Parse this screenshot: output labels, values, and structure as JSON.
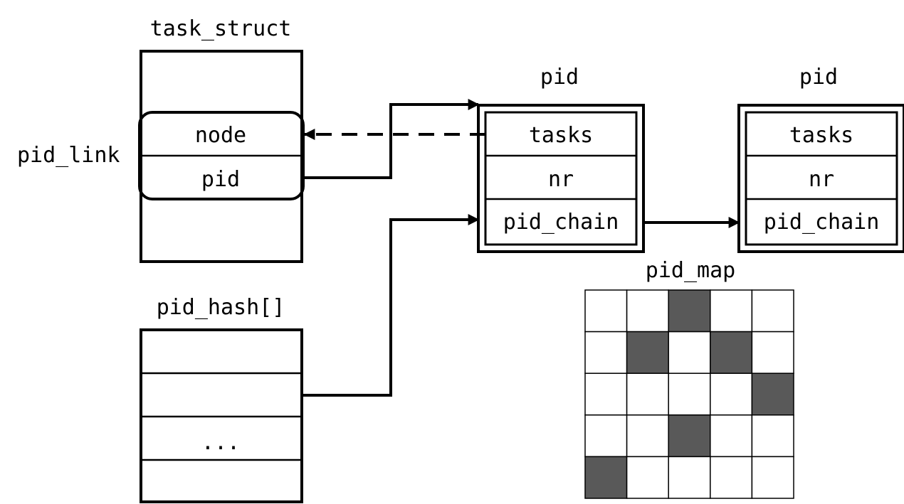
{
  "task_struct": {
    "title": "task_struct",
    "pid_link_label": "pid_link",
    "fields": [
      "node",
      "pid"
    ]
  },
  "pid_hash": {
    "title": "pid_hash[]",
    "slots": [
      "",
      "",
      "...",
      ""
    ]
  },
  "pid_nodes": [
    {
      "title": "pid",
      "fields": [
        "tasks",
        "nr",
        "pid_chain"
      ]
    },
    {
      "title": "pid",
      "fields": [
        "tasks",
        "nr",
        "pid_chain"
      ]
    }
  ],
  "pid_map": {
    "title": "pid_map",
    "rows": 5,
    "cols": 5,
    "filled_cells": [
      [
        0,
        2
      ],
      [
        1,
        1
      ],
      [
        1,
        3
      ],
      [
        2,
        4
      ],
      [
        3,
        2
      ],
      [
        4,
        0
      ]
    ],
    "fill_color": "#595959",
    "empty_color": "#ffffff"
  }
}
